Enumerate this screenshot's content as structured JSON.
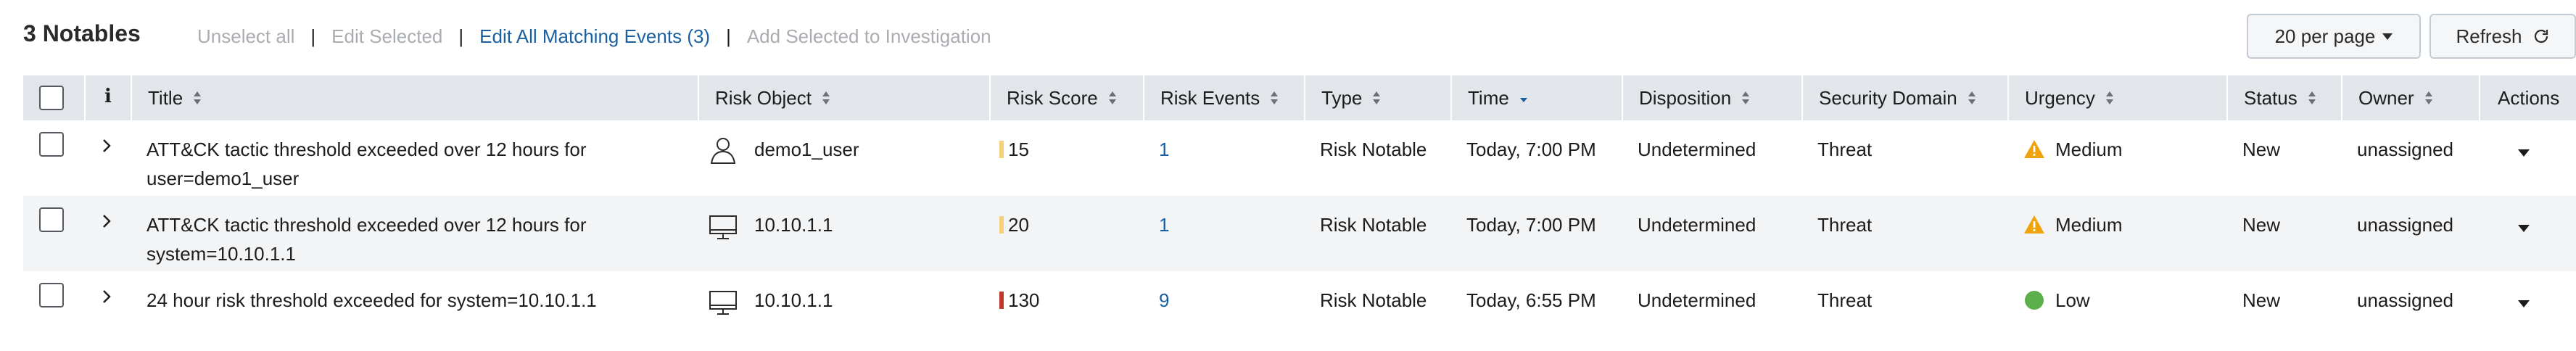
{
  "header": {
    "count_label": "3 Notables",
    "actions": {
      "unselect_all": "Unselect all",
      "edit_selected": "Edit Selected",
      "edit_all_matching": "Edit All Matching Events (3)",
      "add_to_investigation": "Add Selected to Investigation"
    },
    "per_page_label": "20 per page",
    "refresh_label": "Refresh"
  },
  "colors": {
    "link": "#1a5fa0",
    "disabled": "#a9acb1",
    "header_bg": "#e2e6ea",
    "score_low": "#f5d27a",
    "score_high": "#c0392b",
    "urgency_medium": "#f0a30a",
    "urgency_low": "#5cb04c"
  },
  "table": {
    "columns": {
      "info": "i",
      "title": "Title",
      "risk_object": "Risk Object",
      "risk_score": "Risk Score",
      "risk_events": "Risk Events",
      "type": "Type",
      "time": "Time",
      "disposition": "Disposition",
      "security_domain": "Security Domain",
      "urgency": "Urgency",
      "status": "Status",
      "owner": "Owner",
      "actions": "Actions"
    },
    "rows": [
      {
        "title_line1": "ATT&CK tactic threshold exceeded over 12 hours for",
        "title_line2": "user=demo1_user",
        "risk_object": "demo1_user",
        "risk_object_icon": "user-icon",
        "risk_score": "15",
        "risk_events": "1",
        "type": "Risk Notable",
        "time": "Today, 7:00 PM",
        "disposition": "Undetermined",
        "security_domain": "Threat",
        "urgency": "Medium",
        "urgency_icon": "warning-icon",
        "status": "New",
        "owner": "unassigned"
      },
      {
        "title_line1": "ATT&CK tactic threshold exceeded over 12 hours for",
        "title_line2": "system=10.10.1.1",
        "risk_object": "10.10.1.1",
        "risk_object_icon": "monitor-icon",
        "risk_score": "20",
        "risk_events": "1",
        "type": "Risk Notable",
        "time": "Today, 7:00 PM",
        "disposition": "Undetermined",
        "security_domain": "Threat",
        "urgency": "Medium",
        "urgency_icon": "warning-icon",
        "status": "New",
        "owner": "unassigned"
      },
      {
        "title_line1": "24 hour risk threshold exceeded for system=10.10.1.1",
        "title_line2": "",
        "risk_object": "10.10.1.1",
        "risk_object_icon": "monitor-icon",
        "risk_score": "130",
        "risk_events": "9",
        "type": "Risk Notable",
        "time": "Today, 6:55 PM",
        "disposition": "Undetermined",
        "security_domain": "Threat",
        "urgency": "Low",
        "urgency_icon": "circle-icon",
        "status": "New",
        "owner": "unassigned"
      }
    ]
  }
}
